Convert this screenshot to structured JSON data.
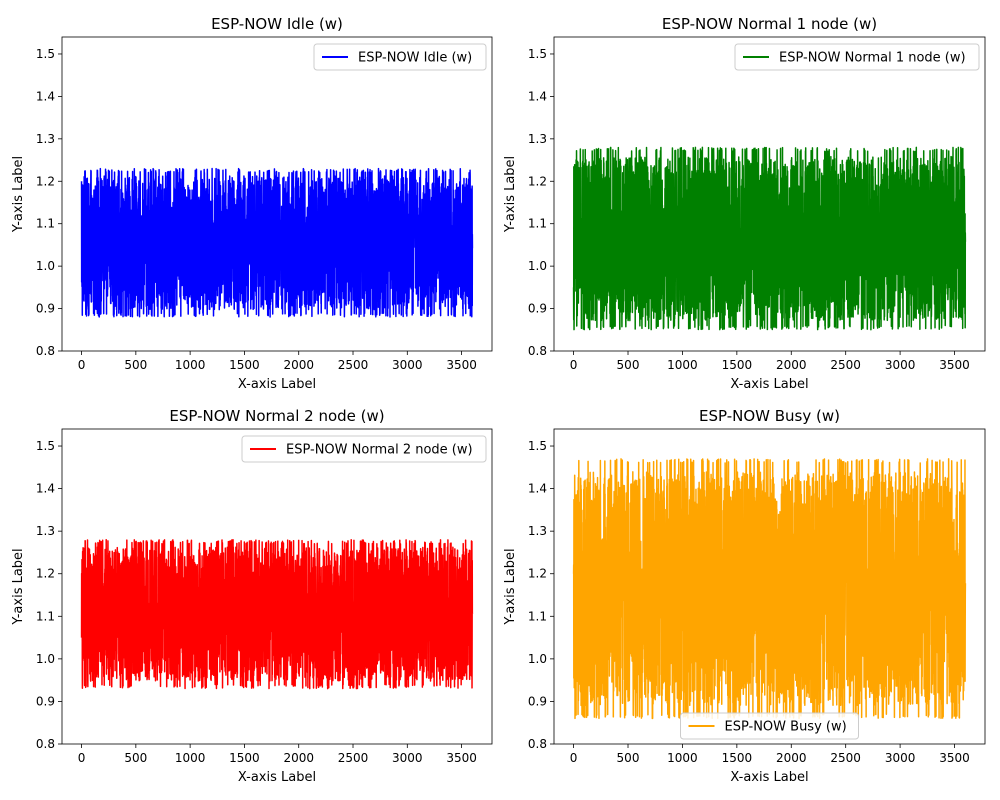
{
  "chart_data": [
    {
      "type": "line",
      "title": "ESP-NOW Idle (w)",
      "xlabel": "X-axis Label",
      "ylabel": "Y-axis Label",
      "xlim": [
        -180,
        3780
      ],
      "ylim": [
        0.8,
        1.54
      ],
      "xticks": [
        0,
        500,
        1000,
        1500,
        2000,
        2500,
        3000,
        3500
      ],
      "xtick_labels": [
        "0",
        "500",
        "1000",
        "1500",
        "2000",
        "2500",
        "3000",
        "3500"
      ],
      "yticks": [
        0.8,
        0.9,
        1.0,
        1.1,
        1.2,
        1.3,
        1.4,
        1.5
      ],
      "ytick_labels": [
        "0.8",
        "0.9",
        "1.0",
        "1.1",
        "1.2",
        "1.3",
        "1.4",
        "1.5"
      ],
      "legend_position": "upper right",
      "grid": false,
      "series": [
        {
          "name": "ESP-NOW Idle (w)",
          "color": "#0000ff",
          "x_start": 0,
          "x_end": 3600,
          "n_points": 3600,
          "y_min": 0.88,
          "y_max": 1.23,
          "y_start": 1.2
        }
      ]
    },
    {
      "type": "line",
      "title": "ESP-NOW Normal 1 node (w)",
      "xlabel": "X-axis Label",
      "ylabel": "Y-axis Label",
      "xlim": [
        -180,
        3780
      ],
      "ylim": [
        0.8,
        1.54
      ],
      "xticks": [
        0,
        500,
        1000,
        1500,
        2000,
        2500,
        3000,
        3500
      ],
      "xtick_labels": [
        "0",
        "500",
        "1000",
        "1500",
        "2000",
        "2500",
        "3000",
        "3500"
      ],
      "yticks": [
        0.8,
        0.9,
        1.0,
        1.1,
        1.2,
        1.3,
        1.4,
        1.5
      ],
      "ytick_labels": [
        "0.8",
        "0.9",
        "1.0",
        "1.1",
        "1.2",
        "1.3",
        "1.4",
        "1.5"
      ],
      "legend_position": "upper right",
      "grid": false,
      "series": [
        {
          "name": "ESP-NOW Normal 1 node (w)",
          "color": "#008000",
          "x_start": 0,
          "x_end": 3600,
          "n_points": 3600,
          "y_min": 0.85,
          "y_max": 1.28,
          "y_start": 0.95
        }
      ]
    },
    {
      "type": "line",
      "title": "ESP-NOW Normal 2 node (w)",
      "xlabel": "X-axis Label",
      "ylabel": "Y-axis Label",
      "xlim": [
        -180,
        3780
      ],
      "ylim": [
        0.8,
        1.54
      ],
      "xticks": [
        0,
        500,
        1000,
        1500,
        2000,
        2500,
        3000,
        3500
      ],
      "xtick_labels": [
        "0",
        "500",
        "1000",
        "1500",
        "2000",
        "2500",
        "3000",
        "3500"
      ],
      "yticks": [
        0.8,
        0.9,
        1.0,
        1.1,
        1.2,
        1.3,
        1.4,
        1.5
      ],
      "ytick_labels": [
        "0.8",
        "0.9",
        "1.0",
        "1.1",
        "1.2",
        "1.3",
        "1.4",
        "1.5"
      ],
      "legend_position": "upper right",
      "grid": false,
      "series": [
        {
          "name": "ESP-NOW Normal 2 node (w)",
          "color": "#ff0000",
          "x_start": 0,
          "x_end": 3600,
          "n_points": 3600,
          "y_min": 0.93,
          "y_max": 1.28,
          "y_start": 1.05
        }
      ]
    },
    {
      "type": "line",
      "title": "ESP-NOW Busy (w)",
      "xlabel": "X-axis Label",
      "ylabel": "Y-axis Label",
      "xlim": [
        -180,
        3780
      ],
      "ylim": [
        0.8,
        1.54
      ],
      "xticks": [
        0,
        500,
        1000,
        1500,
        2000,
        2500,
        3000,
        3500
      ],
      "xtick_labels": [
        "0",
        "500",
        "1000",
        "1500",
        "2000",
        "2500",
        "3000",
        "3500"
      ],
      "yticks": [
        0.8,
        0.9,
        1.0,
        1.1,
        1.2,
        1.3,
        1.4,
        1.5
      ],
      "ytick_labels": [
        "0.8",
        "0.9",
        "1.0",
        "1.1",
        "1.2",
        "1.3",
        "1.4",
        "1.5"
      ],
      "legend_position": "lower center",
      "grid": false,
      "series": [
        {
          "name": "ESP-NOW Busy (w)",
          "color": "#ffa500",
          "x_start": 0,
          "x_end": 3600,
          "n_points": 3600,
          "y_min": 0.86,
          "y_max": 1.47,
          "y_start": 1.2
        }
      ]
    }
  ]
}
